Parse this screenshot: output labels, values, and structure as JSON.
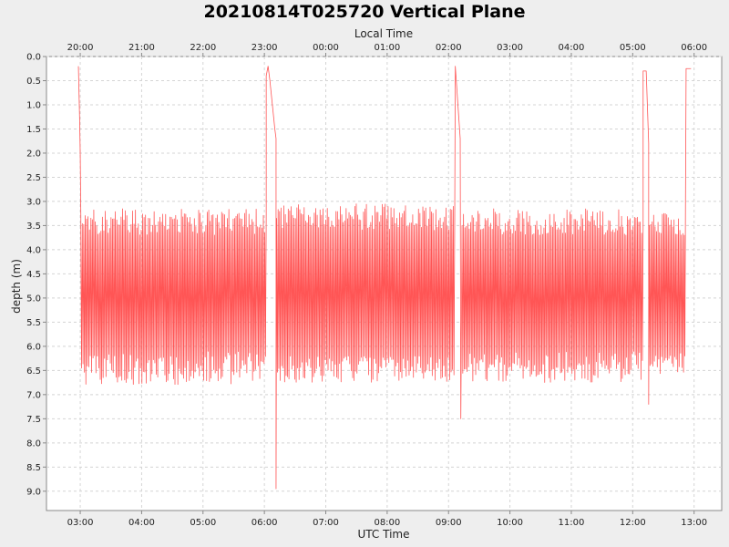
{
  "chart_data": {
    "type": "line",
    "title": "20210814T025720 Vertical Plane",
    "xlabel": "UTC Time",
    "x2label": "Local Time",
    "ylabel": "depth (m)",
    "x_units": "hours UTC (continuing past 24 = next day)",
    "xlim": [
      2.45,
      13.45
    ],
    "ylim": [
      0.0,
      9.4
    ],
    "y_inverted": true,
    "grid": true,
    "legend": "none",
    "x_ticks": [
      {
        "value": 3,
        "label": "03:00"
      },
      {
        "value": 4,
        "label": "04:00"
      },
      {
        "value": 5,
        "label": "05:00"
      },
      {
        "value": 6,
        "label": "06:00"
      },
      {
        "value": 7,
        "label": "07:00"
      },
      {
        "value": 8,
        "label": "08:00"
      },
      {
        "value": 9,
        "label": "09:00"
      },
      {
        "value": 10,
        "label": "10:00"
      },
      {
        "value": 11,
        "label": "11:00"
      },
      {
        "value": 12,
        "label": "12:00"
      },
      {
        "value": 13,
        "label": "13:00"
      }
    ],
    "x2_ticks": [
      {
        "value": 3,
        "label": "20:00"
      },
      {
        "value": 4,
        "label": "21:00"
      },
      {
        "value": 5,
        "label": "22:00"
      },
      {
        "value": 6,
        "label": "23:00"
      },
      {
        "value": 7,
        "label": "00:00"
      },
      {
        "value": 8,
        "label": "01:00"
      },
      {
        "value": 9,
        "label": "02:00"
      },
      {
        "value": 10,
        "label": "03:00"
      },
      {
        "value": 11,
        "label": "04:00"
      },
      {
        "value": 12,
        "label": "05:00"
      },
      {
        "value": 13,
        "label": "06:00"
      }
    ],
    "y_ticks": [
      {
        "value": 0.0,
        "label": "0.0"
      },
      {
        "value": 0.5,
        "label": "0.5"
      },
      {
        "value": 1.0,
        "label": "1.0"
      },
      {
        "value": 1.5,
        "label": "1.5"
      },
      {
        "value": 2.0,
        "label": "2.0"
      },
      {
        "value": 2.5,
        "label": "2.5"
      },
      {
        "value": 3.0,
        "label": "3.0"
      },
      {
        "value": 3.5,
        "label": "3.5"
      },
      {
        "value": 4.0,
        "label": "4.0"
      },
      {
        "value": 4.5,
        "label": "4.5"
      },
      {
        "value": 5.0,
        "label": "5.0"
      },
      {
        "value": 5.5,
        "label": "5.5"
      },
      {
        "value": 6.0,
        "label": "6.0"
      },
      {
        "value": 6.5,
        "label": "6.5"
      },
      {
        "value": 7.0,
        "label": "7.0"
      },
      {
        "value": 7.5,
        "label": "7.5"
      },
      {
        "value": 8.0,
        "label": "8.0"
      },
      {
        "value": 8.5,
        "label": "8.5"
      },
      {
        "value": 9.0,
        "label": "9.0"
      }
    ],
    "series": [
      {
        "color": "#ff5555",
        "segments": [
          {
            "kind": "dive",
            "start": 2.98,
            "end": 3.01,
            "points": [
              [
                2.97,
                0.2
              ],
              [
                2.99,
                1.3
              ],
              [
                3.0,
                2.0
              ],
              [
                3.01,
                3.3
              ]
            ]
          },
          {
            "kind": "oscillation",
            "start": 3.01,
            "end": 6.03,
            "top_range": [
              3.15,
              3.7
            ],
            "bottom_range": [
              6.1,
              6.8
            ],
            "cycle_h": 0.0235
          },
          {
            "kind": "surface",
            "start": 6.03,
            "end": 6.2,
            "points": [
              [
                6.03,
                3.3
              ],
              [
                6.03,
                0.4
              ],
              [
                6.06,
                0.2
              ],
              [
                6.09,
                0.5
              ],
              [
                6.17,
                1.5
              ],
              [
                6.19,
                1.7
              ],
              [
                6.19,
                8.95
              ],
              [
                6.2,
                3.5
              ]
            ]
          },
          {
            "kind": "oscillation",
            "start": 6.2,
            "end": 9.1,
            "top_range": [
              3.05,
              3.6
            ],
            "bottom_range": [
              6.2,
              6.75
            ],
            "cycle_h": 0.0235
          },
          {
            "kind": "surface",
            "start": 9.1,
            "end": 9.22,
            "points": [
              [
                9.1,
                3.5
              ],
              [
                9.11,
                0.2
              ],
              [
                9.19,
                1.7
              ],
              [
                9.2,
                7.5
              ],
              [
                9.22,
                3.5
              ]
            ]
          },
          {
            "kind": "oscillation",
            "start": 9.22,
            "end": 12.17,
            "top_range": [
              3.15,
              3.7
            ],
            "bottom_range": [
              6.1,
              6.75
            ],
            "cycle_h": 0.0235
          },
          {
            "kind": "surface",
            "start": 12.17,
            "end": 12.27,
            "points": [
              [
                12.17,
                3.5
              ],
              [
                12.17,
                0.3
              ],
              [
                12.22,
                0.3
              ],
              [
                12.26,
                1.8
              ],
              [
                12.26,
                7.2
              ],
              [
                12.27,
                3.5
              ]
            ]
          },
          {
            "kind": "oscillation",
            "start": 12.27,
            "end": 12.84,
            "top_range": [
              3.2,
              3.7
            ],
            "bottom_range": [
              6.1,
              6.6
            ],
            "cycle_h": 0.0235
          },
          {
            "kind": "ascent",
            "start": 12.84,
            "end": 12.95,
            "points": [
              [
                12.84,
                3.7
              ],
              [
                12.85,
                6.2
              ],
              [
                12.86,
                3.0
              ],
              [
                12.87,
                0.25
              ],
              [
                12.95,
                0.25
              ]
            ]
          }
        ]
      }
    ]
  }
}
